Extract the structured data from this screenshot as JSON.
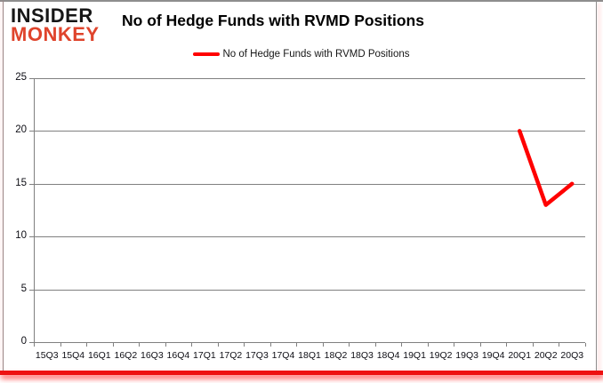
{
  "branding": {
    "logo_line1": "INSIDER",
    "logo_line2": "MONKEY",
    "logo_primary_color": "#161616",
    "logo_accent_color": "#df442c"
  },
  "header": {
    "title": "No of Hedge Funds with RVMD Positions"
  },
  "legend": {
    "label": "No of Hedge Funds with RVMD Positions",
    "line_color": "#ff0000"
  },
  "chart_data": {
    "type": "line",
    "title": "No of Hedge Funds with RVMD Positions",
    "categories": [
      "15Q3",
      "15Q4",
      "16Q1",
      "16Q2",
      "16Q3",
      "16Q4",
      "17Q1",
      "17Q2",
      "17Q3",
      "17Q4",
      "18Q1",
      "18Q2",
      "18Q3",
      "18Q4",
      "19Q1",
      "19Q2",
      "19Q3",
      "19Q4",
      "20Q1",
      "20Q2",
      "20Q3"
    ],
    "series": [
      {
        "name": "No of Hedge Funds with RVMD Positions",
        "color": "#ff0000",
        "points": [
          {
            "category": "20Q1",
            "value": 20
          },
          {
            "category": "20Q2",
            "value": 13
          },
          {
            "category": "20Q3",
            "value": 15
          }
        ]
      }
    ],
    "ylim": [
      0,
      25
    ],
    "yticks": [
      0,
      5,
      10,
      15,
      20,
      25
    ],
    "grid": "horizontal-only",
    "legend_position": "top-center",
    "gridline_color": "#808080",
    "axis_label_color": "#0d0d14",
    "background_color": "#ffffff"
  }
}
